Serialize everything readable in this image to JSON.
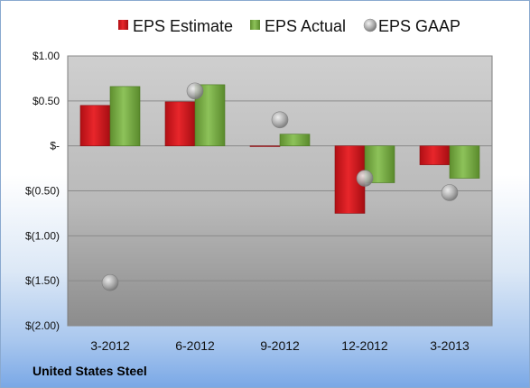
{
  "company": "United States Steel",
  "chart_data": {
    "type": "bar",
    "categories": [
      "3-2012",
      "6-2012",
      "9-2012",
      "12-2012",
      "3-2013"
    ],
    "series": [
      {
        "name": "EPS Estimate",
        "kind": "bar",
        "color": "#d9191f",
        "values": [
          0.45,
          0.49,
          0.0,
          -0.75,
          -0.21
        ]
      },
      {
        "name": "EPS Actual",
        "kind": "bar",
        "color": "#7fb24a",
        "values": [
          0.66,
          0.68,
          0.13,
          -0.41,
          -0.36
        ]
      },
      {
        "name": "EPS GAAP",
        "kind": "marker",
        "color": "#a8a8a8",
        "values": [
          -1.52,
          0.61,
          0.29,
          -0.36,
          -0.52
        ]
      }
    ],
    "yticks": [
      {
        "value": 1.0,
        "label": "$1.00"
      },
      {
        "value": 0.5,
        "label": "$0.50"
      },
      {
        "value": 0.0,
        "label": "$-"
      },
      {
        "value": -0.5,
        "label": "$(0.50)"
      },
      {
        "value": -1.0,
        "label": "$(1.00)"
      },
      {
        "value": -1.5,
        "label": "$(1.50)"
      },
      {
        "value": -2.0,
        "label": "$(2.00)"
      }
    ],
    "ylim": [
      -2.0,
      1.0
    ],
    "grid": true,
    "legend_position": "top"
  }
}
